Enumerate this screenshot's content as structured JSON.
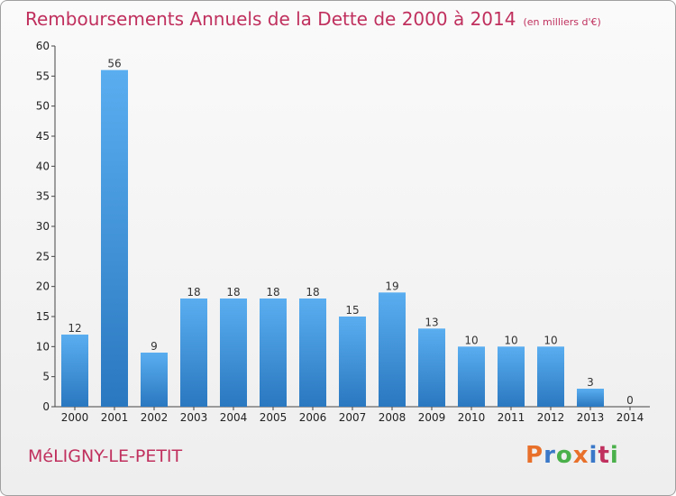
{
  "header": {
    "title": "Remboursements Annuels de la Dette de 2000 à 2014",
    "unit": "(en milliers d'€)"
  },
  "footer": {
    "commune": "MéLIGNY-LE-PETIT",
    "logo": "Proxiti"
  },
  "colors": {
    "title": "#c0305e",
    "bar_top": "#5aaef0",
    "bar_bottom": "#2a78c0",
    "logo_letters": [
      "#e8702a",
      "#3a78c8",
      "#4ab04a",
      "#e8702a",
      "#3a78c8",
      "#c0305e",
      "#4ab04a"
    ]
  },
  "chart_data": {
    "type": "bar",
    "categories": [
      "2000",
      "2001",
      "2002",
      "2003",
      "2004",
      "2005",
      "2006",
      "2007",
      "2008",
      "2009",
      "2010",
      "2011",
      "2012",
      "2013",
      "2014"
    ],
    "values": [
      12,
      56,
      9,
      18,
      18,
      18,
      18,
      15,
      19,
      13,
      10,
      10,
      10,
      3,
      0
    ],
    "yticks": [
      0,
      5,
      10,
      15,
      20,
      25,
      30,
      35,
      40,
      45,
      50,
      55,
      60
    ],
    "ylim": [
      0,
      60
    ],
    "grid": false,
    "legend": "none"
  }
}
